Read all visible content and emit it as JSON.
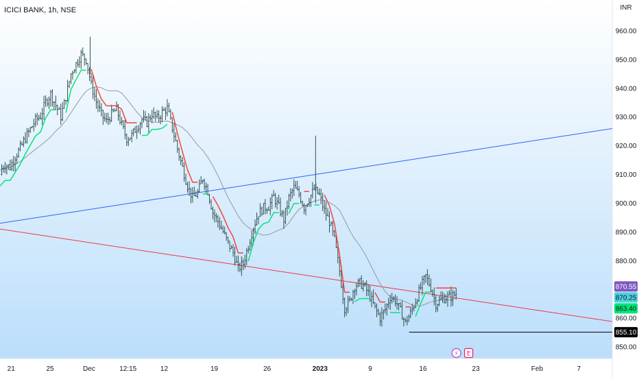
{
  "chart_data": {
    "type": "candlestick",
    "title": "ICICI BANK, 1h, NSE",
    "currency": "INR",
    "ylim": [
      846,
      966
    ],
    "y_ticks": [
      850,
      860,
      870,
      880,
      890,
      900,
      910,
      920,
      930,
      940,
      950,
      960
    ],
    "y_tick_labels": [
      "850.00",
      "860.00",
      "870.00",
      "880.00",
      "890.00",
      "900.00",
      "910.00",
      "920.00",
      "930.00",
      "940.00",
      "950.00",
      "960.00"
    ],
    "x_domain": [
      0,
      110
    ],
    "x_ticks": [
      {
        "pos": 2,
        "label": "21",
        "bold": false
      },
      {
        "pos": 9,
        "label": "25",
        "bold": false
      },
      {
        "pos": 16,
        "label": "Dec",
        "bold": false
      },
      {
        "pos": 23,
        "label": "12:15",
        "bold": false
      },
      {
        "pos": 29.5,
        "label": "12",
        "bold": false
      },
      {
        "pos": 38.5,
        "label": "19",
        "bold": false
      },
      {
        "pos": 48,
        "label": "26",
        "bold": false
      },
      {
        "pos": 57.5,
        "label": "2023",
        "bold": true
      },
      {
        "pos": 66.5,
        "label": "9",
        "bold": false
      },
      {
        "pos": 76,
        "label": "16",
        "bold": false
      },
      {
        "pos": 85.5,
        "label": "23",
        "bold": false
      },
      {
        "pos": 96.5,
        "label": "Feb",
        "bold": false
      },
      {
        "pos": 104,
        "label": "7",
        "bold": false
      }
    ],
    "close": [
      911.5,
      913.4,
      912.6,
      916.3,
      919.1,
      922.7,
      925.8,
      928.9,
      930.3,
      935.1,
      938.0,
      934.1,
      930.2,
      937.0,
      945.1,
      948.5,
      951.8,
      950.0,
      941.2,
      935.3,
      930.8,
      928.4,
      931.0,
      932.6,
      927.2,
      922.5,
      923.6,
      926.4,
      929.1,
      928.1,
      931.2,
      929.4,
      931.6,
      933.0,
      926.2,
      918.9,
      912.4,
      906.1,
      901.8,
      903.6,
      908.7,
      904.2,
      896.8,
      893.7,
      890.1,
      886.0,
      882.8,
      877.2,
      879.0,
      885.3,
      891.7,
      896.5,
      898.4,
      898.9,
      902.2,
      898.7,
      894.3,
      901.9,
      905.4,
      903.1,
      898.6,
      901.6,
      904.9,
      902.8,
      897.4,
      893.6,
      887.3,
      876.4,
      863.5,
      865.9,
      871.2,
      872.3,
      870.7,
      867.6,
      863.4,
      860.1,
      863.0,
      867.4,
      866.2,
      862.5,
      858.4,
      861.7,
      866.1,
      870.6,
      874.6,
      870.7,
      865.0,
      866.4,
      867.2,
      867.5,
      868.5
    ],
    "resistance_line": {
      "x": [
        0,
        110
      ],
      "y": [
        893.0,
        926.0
      ]
    },
    "support_line": {
      "x": [
        0,
        110
      ],
      "y": [
        891.0,
        858.8
      ]
    },
    "horizontal_level": {
      "x_start": 73.5,
      "value": 855.1
    },
    "price_labels": [
      {
        "value": 870.55,
        "label": "870.55",
        "bg": "#7e57c2",
        "fg": "#ffffff"
      },
      {
        "value": 870.25,
        "label": "870.25",
        "bg": "#4dd0e1",
        "fg": "#131722"
      },
      {
        "value": 863.4,
        "label": "863.40",
        "bg": "#00e676",
        "fg": "#131722"
      },
      {
        "value": 855.1,
        "label": "855.10",
        "bg": "#000000",
        "fg": "#ffffff"
      }
    ],
    "markers": [
      {
        "pos": 82,
        "symbol": "⚡",
        "color": "#ab47bc"
      },
      {
        "pos": 84.2,
        "symbol": "E",
        "color": "#e91e63"
      }
    ],
    "colors": {
      "candle": "#2f4f4f",
      "supertrend_up": "#00e676",
      "supertrend_down": "#f44336",
      "moving_average": "#9598a1",
      "resistance": "#2962ff",
      "support": "#f23645",
      "bg_top": "#ffffff",
      "bg_bottom": "#bbdefb"
    }
  }
}
